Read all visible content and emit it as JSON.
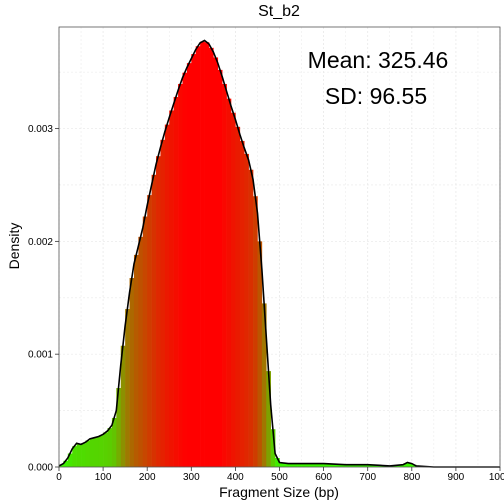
{
  "chart_data": {
    "type": "area",
    "title": "St_b2",
    "xlabel": "Fragment Size (bp)",
    "ylabel": "Density",
    "xlim": [
      0,
      1000
    ],
    "ylim": [
      0,
      0.0039
    ],
    "x_ticks": [
      "0",
      "100",
      "200",
      "300",
      "400",
      "500",
      "600",
      "700",
      "800",
      "900",
      "1000"
    ],
    "y_ticks": [
      "0.000",
      "0.001",
      "0.002",
      "0.003"
    ],
    "y_tick_values": [
      0,
      0.001,
      0.002,
      0.003
    ],
    "grid": true,
    "annotations": {
      "mean": "Mean: 325.46",
      "sd": "SD: 96.55"
    },
    "colors": {
      "low": "#33ff00",
      "high": "#ff0000",
      "line": "#000000",
      "grid": "#e8e8e8"
    },
    "x": [
      0,
      10,
      20,
      30,
      40,
      50,
      60,
      70,
      80,
      90,
      100,
      110,
      120,
      130,
      140,
      150,
      160,
      170,
      180,
      190,
      200,
      210,
      220,
      230,
      240,
      250,
      260,
      270,
      280,
      290,
      300,
      310,
      320,
      330,
      340,
      350,
      360,
      370,
      380,
      390,
      400,
      410,
      420,
      430,
      440,
      450,
      460,
      470,
      480,
      490,
      500,
      520,
      560,
      600,
      650,
      700,
      750,
      780,
      790,
      800,
      810,
      850,
      900,
      950,
      1000
    ],
    "values": [
      1e-05,
      3e-05,
      8e-05,
      0.00016,
      0.00021,
      0.0002,
      0.00022,
      0.00025,
      0.00026,
      0.00027,
      0.00029,
      0.00032,
      0.00037,
      0.0005,
      0.0009,
      0.00125,
      0.00155,
      0.0018,
      0.00196,
      0.00212,
      0.00232,
      0.0025,
      0.00268,
      0.00283,
      0.00297,
      0.0031,
      0.00322,
      0.00334,
      0.00345,
      0.00354,
      0.00362,
      0.0037,
      0.00376,
      0.00378,
      0.00375,
      0.00368,
      0.00358,
      0.00346,
      0.00333,
      0.0032,
      0.00308,
      0.00295,
      0.00283,
      0.00272,
      0.00255,
      0.00225,
      0.00175,
      0.00115,
      0.00055,
      0.00012,
      4e-05,
      3e-05,
      3e-05,
      3e-05,
      2e-05,
      2e-05,
      1e-05,
      2e-05,
      4e-05,
      3e-05,
      1e-05,
      0.0,
      0.0,
      0.0,
      0.0
    ]
  }
}
